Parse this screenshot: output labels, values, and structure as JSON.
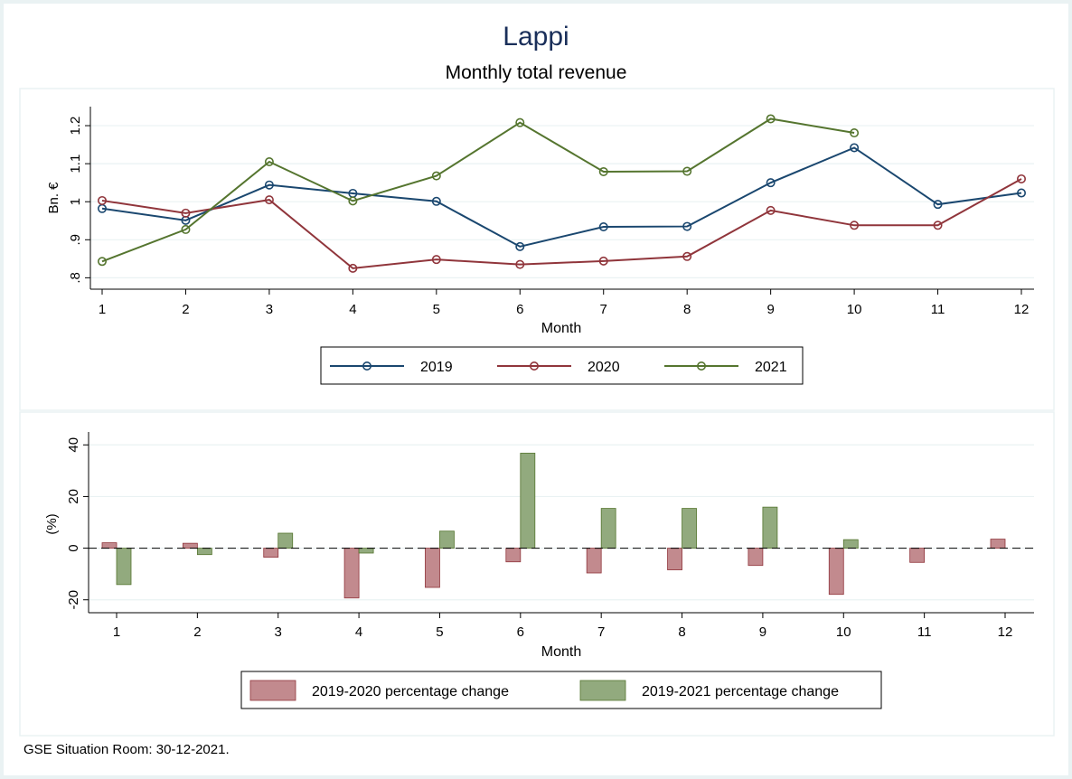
{
  "title": "Lappi",
  "subtitle": "Monthly total revenue",
  "note": "GSE Situation Room: 30-12-2021.",
  "colors": {
    "series_2019": "#1a476f",
    "series_2020": "#90353b",
    "series_2021": "#55752f",
    "bar_2020": "#c28a8e",
    "bar_2021": "#92aa7e",
    "title": "#1a2f5a",
    "grid": "#eaf2f3"
  },
  "chart_data": [
    {
      "type": "line",
      "xlabel": "Month",
      "ylabel": "Bn. €",
      "xticks": [
        "1",
        "2",
        "3",
        "4",
        "5",
        "6",
        "7",
        "8",
        "9",
        "10",
        "11",
        "12"
      ],
      "yticks": [
        ".8",
        ".9",
        "1",
        "1.1",
        "1.2"
      ],
      "ytick_values": [
        0.8,
        0.9,
        1.0,
        1.1,
        1.2
      ],
      "xlim": [
        1,
        12
      ],
      "ylim": [
        0.77,
        1.25
      ],
      "grid": true,
      "legend_position": "bottom",
      "x": [
        1,
        2,
        3,
        4,
        5,
        6,
        7,
        8,
        9,
        10,
        11,
        12
      ],
      "series": [
        {
          "name": "2019",
          "values": [
            0.982,
            0.951,
            1.044,
            1.022,
            1.001,
            0.882,
            0.934,
            0.935,
            1.05,
            1.142,
            0.993,
            1.023
          ]
        },
        {
          "name": "2020",
          "values": [
            1.003,
            0.97,
            1.005,
            0.825,
            0.848,
            0.835,
            0.844,
            0.856,
            0.977,
            0.938,
            0.938,
            1.06
          ]
        },
        {
          "name": "2021",
          "values": [
            0.843,
            0.927,
            1.105,
            1.002,
            1.068,
            1.208,
            1.079,
            1.08,
            1.218,
            1.181,
            null,
            null
          ]
        }
      ]
    },
    {
      "type": "bar",
      "xlabel": "Month",
      "ylabel": "(%)",
      "categories": [
        "1",
        "2",
        "3",
        "4",
        "5",
        "6",
        "7",
        "8",
        "9",
        "10",
        "11",
        "12"
      ],
      "yticks": [
        "-20",
        "0",
        "20",
        "40"
      ],
      "ytick_values": [
        -20,
        0,
        20,
        40
      ],
      "ylim": [
        -25,
        45
      ],
      "grid": true,
      "reference_line": 0,
      "legend_position": "bottom",
      "series": [
        {
          "name": "2019-2020 percentage change",
          "values": [
            2.1,
            1.9,
            -3.5,
            -19.3,
            -15.2,
            -5.3,
            -9.6,
            -8.4,
            -6.7,
            -17.9,
            -5.5,
            3.5
          ]
        },
        {
          "name": "2019-2021 percentage change",
          "values": [
            -14.1,
            -2.5,
            5.8,
            -1.9,
            6.6,
            36.8,
            15.4,
            15.4,
            15.9,
            3.3,
            null,
            null
          ]
        }
      ]
    }
  ]
}
